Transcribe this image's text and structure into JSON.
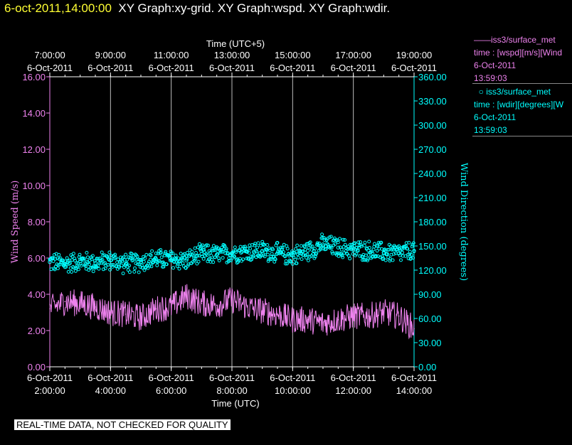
{
  "header": {
    "timestamp": "6-oct-2011,14:00:00",
    "titles": "XY Graph:xy-grid.  XY Graph:wspd.  XY Graph:wdir."
  },
  "legend": {
    "speed": {
      "name": "iss3/surface_met",
      "desc": "time : [wspd][m/s][Wind",
      "date": "6-Oct-2011",
      "time": "13:59:03"
    },
    "dir": {
      "name": "iss3/surface_met",
      "desc": "time : [wdir][degrees][W",
      "date": "6-Oct-2011",
      "time": "13:59:03"
    }
  },
  "note": "REAL-TIME DATA, NOT CHECKED FOR QUALITY",
  "colors": {
    "speed": "#ee82ee",
    "dir": "#00ffff",
    "timestamp": "#ffff33"
  },
  "chart_data": {
    "type": "line",
    "grid": true,
    "xlabel_bottom": "Time (UTC)",
    "xlabel_top": "Time (UTC+5)",
    "ylabel_left": "Wind Speed (m/s)",
    "ylabel_right": "Wind Direction (degrees)",
    "xlim": [
      "2:00:00",
      "14:00:00"
    ],
    "ylim_left": [
      0,
      16
    ],
    "ylim_right": [
      0,
      360
    ],
    "x_ticks_bottom": [
      {
        "date": "6-Oct-2011",
        "time": "2:00:00"
      },
      {
        "date": "6-Oct-2011",
        "time": "4:00:00"
      },
      {
        "date": "6-Oct-2011",
        "time": "6:00:00"
      },
      {
        "date": "6-Oct-2011",
        "time": "8:00:00"
      },
      {
        "date": "6-Oct-2011",
        "time": "10:00:00"
      },
      {
        "date": "6-Oct-2011",
        "time": "12:00:00"
      },
      {
        "date": "6-Oct-2011",
        "time": "14:00:00"
      }
    ],
    "x_ticks_top": [
      {
        "time": "7:00:00",
        "date": "6-Oct-2011"
      },
      {
        "time": "9:00:00",
        "date": "6-Oct-2011"
      },
      {
        "time": "11:00:00",
        "date": "6-Oct-2011"
      },
      {
        "time": "13:00:00",
        "date": "6-Oct-2011"
      },
      {
        "time": "15:00:00",
        "date": "6-Oct-2011"
      },
      {
        "time": "17:00:00",
        "date": "6-Oct-2011"
      },
      {
        "time": "19:00:00",
        "date": "6-Oct-2011"
      }
    ],
    "y_ticks_left": [
      "0.00",
      "2.00",
      "4.00",
      "6.00",
      "8.00",
      "10.00",
      "12.00",
      "14.00",
      "16.00"
    ],
    "y_ticks_right": [
      "0.00",
      "30.00",
      "60.00",
      "90.00",
      "120.00",
      "150.00",
      "180.00",
      "210.00",
      "240.00",
      "270.00",
      "300.00",
      "330.00",
      "360.00"
    ],
    "series": [
      {
        "name": "iss3/surface_met",
        "variable": "wspd",
        "axis": "left",
        "style": "line",
        "x_hours": [
          2.0,
          2.5,
          3.0,
          3.5,
          4.0,
          4.5,
          5.0,
          5.5,
          6.0,
          6.5,
          7.0,
          7.5,
          8.0,
          8.5,
          9.0,
          9.5,
          10.0,
          10.5,
          11.0,
          11.5,
          12.0,
          12.5,
          13.0,
          13.5,
          14.0
        ],
        "values": [
          3.2,
          3.6,
          3.5,
          3.3,
          3.0,
          2.9,
          2.7,
          3.2,
          3.3,
          3.9,
          3.5,
          3.4,
          3.7,
          3.3,
          3.1,
          2.9,
          2.6,
          2.6,
          2.4,
          2.6,
          2.8,
          2.8,
          3.0,
          2.8,
          2.1
        ]
      },
      {
        "name": "iss3/surface_met",
        "variable": "wdir",
        "axis": "right",
        "style": "scatter",
        "x_hours": [
          2.0,
          2.5,
          3.0,
          3.5,
          4.0,
          4.5,
          5.0,
          5.5,
          6.0,
          6.5,
          7.0,
          7.5,
          8.0,
          8.5,
          9.0,
          9.5,
          10.0,
          10.5,
          11.0,
          11.5,
          12.0,
          12.5,
          13.0,
          13.5,
          14.0
        ],
        "values": [
          130,
          128,
          131,
          129,
          132,
          128,
          130,
          134,
          133,
          132,
          140,
          139,
          141,
          143,
          144,
          141,
          138,
          144,
          152,
          148,
          145,
          144,
          142,
          141,
          144
        ]
      }
    ]
  }
}
